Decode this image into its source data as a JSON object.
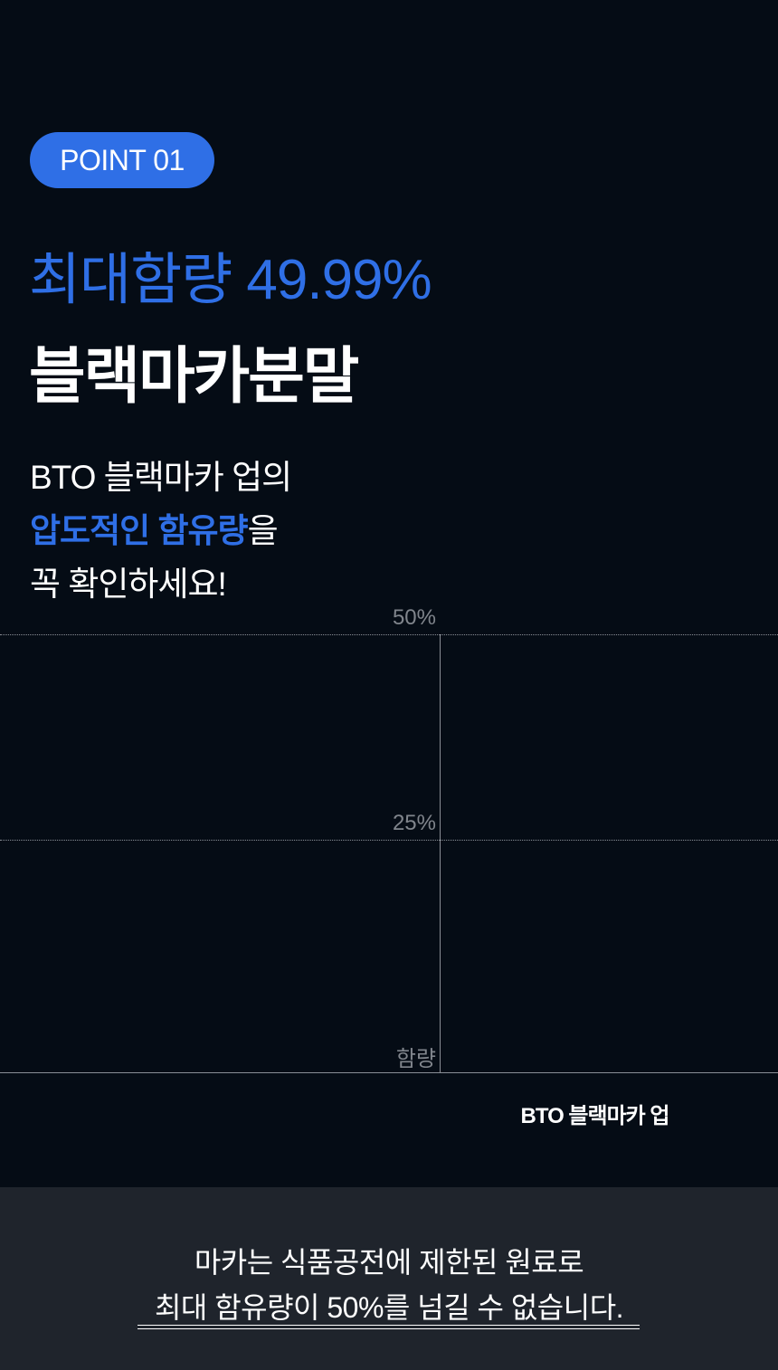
{
  "badge": "POINT 01",
  "headline": {
    "line1": "최대함량 49.99%",
    "line2": "블랙마카분말"
  },
  "description": {
    "line1": "BTO 블랙마카 업의",
    "line2_highlight": "압도적인 함유량",
    "line2_rest": "을",
    "line3": "꼭 확인하세요!"
  },
  "colors": {
    "accent": "#2f6fe6",
    "background": "#050c15",
    "panel": "#1f242c"
  },
  "chart_data": {
    "type": "bar",
    "categories": [
      "BTO 블랙마카 업"
    ],
    "ylabel": "함량",
    "yticks": [
      "50%",
      "25%"
    ],
    "ylim": [
      0,
      50
    ],
    "grid": true
  },
  "notice": {
    "line1": "마카는 식품공전에 제한된 원료로",
    "line2": "최대 함유량이 50%를 넘길 수 없습니다."
  }
}
